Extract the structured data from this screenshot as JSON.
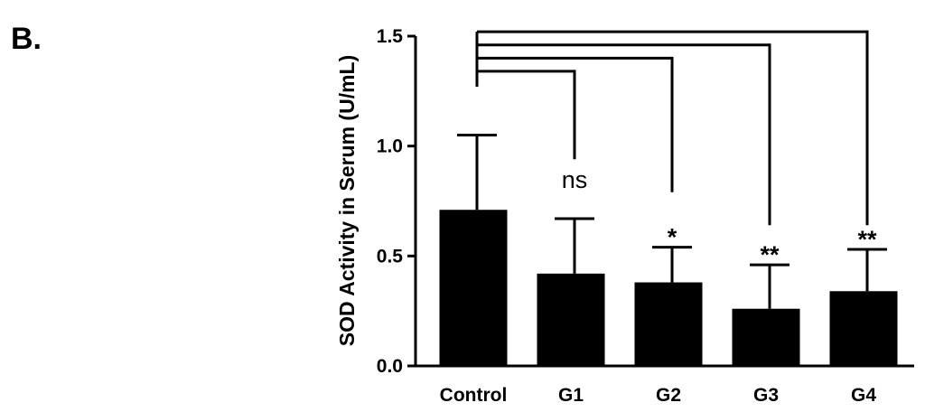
{
  "panel_label": "B.",
  "chart_data": {
    "type": "bar",
    "title": "",
    "xlabel": "",
    "ylabel": "SOD Activity in Serum (U/mL)",
    "ylim": [
      0,
      1.5
    ],
    "yticks": [
      "0.0",
      "0.5",
      "1.0",
      "1.5"
    ],
    "categories": [
      "Control",
      "G1",
      "G2",
      "G3",
      "G4"
    ],
    "values": [
      0.71,
      0.42,
      0.38,
      0.26,
      0.34
    ],
    "error_upper": [
      1.05,
      0.67,
      0.54,
      0.46,
      0.53
    ],
    "significance": [
      "",
      "ns",
      "*",
      "**",
      "**"
    ],
    "bar_color": "#000000",
    "grid": false,
    "comparison_brackets": true
  }
}
